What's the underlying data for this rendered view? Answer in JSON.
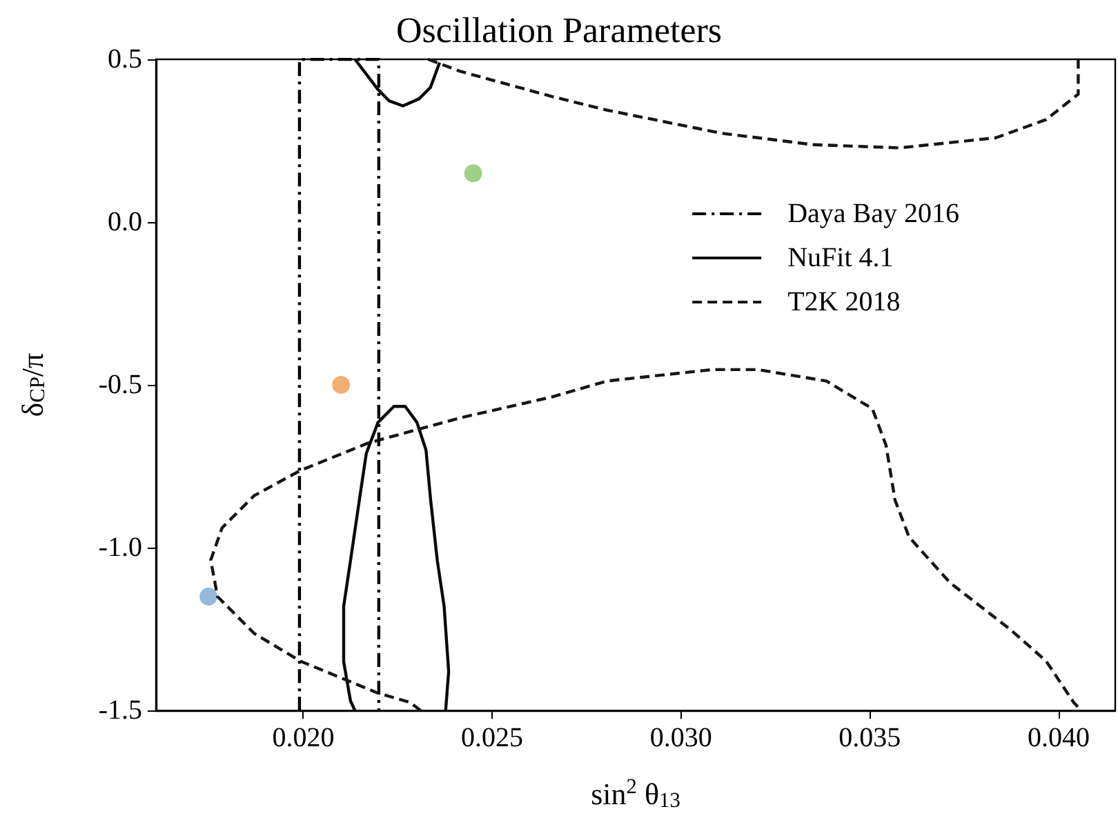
{
  "chart_data": {
    "type": "line",
    "title": "Oscillation Parameters",
    "xlabel": "sin$^{2}$ θ$_{13}$",
    "ylabel": "δ$_{CP}$/π",
    "xlim": [
      0.0161,
      0.0415
    ],
    "ylim": [
      -1.5,
      0.5
    ],
    "xticks": [
      {
        "value": 0.02,
        "label": "0.020"
      },
      {
        "value": 0.025,
        "label": "0.025"
      },
      {
        "value": 0.03,
        "label": "0.030"
      },
      {
        "value": 0.035,
        "label": "0.035"
      },
      {
        "value": 0.04,
        "label": "0.040"
      }
    ],
    "yticks": [
      0.5,
      {
        "value": 0,
        "label": "0.0"
      },
      -0.5,
      {
        "value": -1,
        "label": "-1.0"
      },
      -1.5
    ],
    "grid": false,
    "legend": "top right",
    "marker": "none",
    "series": [
      {
        "name": "Daya Bay 2016",
        "color": "#000000",
        "line_style": "dashdot",
        "x": [
          0.0199,
          0.0199,
          0.022,
          0.022
        ],
        "values": [
          -1.5,
          0.5,
          0.5,
          -1.5
        ]
      },
      {
        "name": "NuFit 4.1",
        "color": "#0a0a0a",
        "line_style": "solid",
        "x": [
          0.02137,
          0.02125,
          0.02107,
          0.02107,
          0.02125,
          0.02149,
          0.02167,
          0.02198,
          0.0224,
          0.0227,
          0.02301,
          0.02325,
          0.02337,
          0.02355,
          0.02373,
          0.02385,
          0.02377,
          null,
          0.02137,
          0.02198,
          0.02228,
          0.02264,
          0.02307,
          0.02337,
          0.02361
        ],
        "values": [
          -1.5,
          -1.47,
          -1.35,
          -1.18,
          -1.04,
          -0.85,
          -0.71,
          -0.615,
          -0.566,
          -0.566,
          -0.615,
          -0.7,
          -0.85,
          -1.04,
          -1.18,
          -1.38,
          -1.5,
          null,
          0.5,
          0.407,
          0.372,
          0.357,
          0.379,
          0.414,
          0.49
        ]
      },
      {
        "name": "T2K 2018",
        "color": "#161616",
        "line_style": "dashed",
        "x": [
          0.02311,
          0.02283,
          0.02197,
          0.01992,
          0.0187,
          0.01773,
          0.01755,
          0.01785,
          0.0187,
          0.01992,
          0.02173,
          0.02416,
          0.02658,
          0.02804,
          0.03083,
          0.03204,
          0.03385,
          0.03507,
          0.03543,
          0.03567,
          0.03604,
          0.03713,
          0.0387,
          0.03967,
          0.0404,
          0.0406,
          null,
          0.02331,
          0.02416,
          0.02658,
          0.02804,
          0.03107,
          0.03349,
          0.03579,
          0.03834,
          0.03967,
          0.04052,
          0.04052
        ],
        "values": [
          -1.5,
          -1.475,
          -1.446,
          -1.348,
          -1.263,
          -1.15,
          -1.038,
          -0.939,
          -0.84,
          -0.763,
          -0.678,
          -0.601,
          -0.537,
          -0.488,
          -0.453,
          -0.453,
          -0.488,
          -0.573,
          -0.685,
          -0.854,
          -0.967,
          -1.108,
          -1.249,
          -1.348,
          -1.475,
          -1.5,
          null,
          0.5,
          0.463,
          0.386,
          0.344,
          0.273,
          0.238,
          0.228,
          0.259,
          0.315,
          0.393,
          0.5
        ]
      },
      {
        "type": "scatter",
        "marker": "circle",
        "x": [
          0.01749,
          0.021,
          0.0245
        ],
        "values": [
          -1.15,
          -0.5,
          0.15
        ],
        "colors": [
          "#7ba7d1",
          "#f09a4e",
          "#86c66a"
        ]
      }
    ]
  }
}
